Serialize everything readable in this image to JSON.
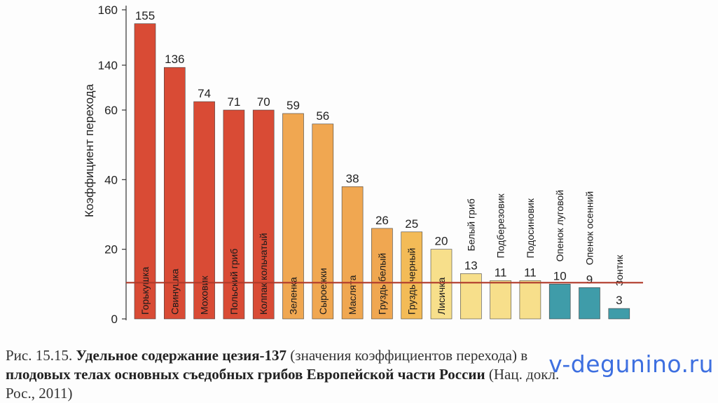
{
  "chart_data": {
    "type": "bar",
    "title": "",
    "ylabel": "Коэффициент перехода",
    "xlabel": "",
    "y_ticks": [
      "160",
      "140",
      "60",
      "40",
      "20",
      "0"
    ],
    "y_tick_values": [
      160,
      140,
      60,
      40,
      20,
      0
    ],
    "axis_break": "between 60 and 140",
    "reference_line": 10,
    "categories": [
      "Горькушка",
      "Свинушка",
      "Моховик",
      "Польский гриб",
      "Колпак кольчатый",
      "Зеленка",
      "Сыроежки",
      "Маслята",
      "Груздь белый",
      "Груздь черный",
      "Лисичка",
      "Белый гриб",
      "Подберезовик",
      "Подосиновик",
      "Опенок луговой",
      "Опенок осенний",
      "Зонтик"
    ],
    "values": [
      155,
      136,
      74,
      71,
      70,
      59,
      56,
      38,
      26,
      25,
      20,
      13,
      11,
      11,
      10,
      9,
      3
    ],
    "value_labels": [
      "155",
      "136",
      "74",
      "71",
      "70",
      "59",
      "56",
      "38",
      "26",
      "25",
      "20",
      "13",
      "11",
      "11",
      "10",
      "9",
      "3"
    ],
    "colors": [
      "#d94b35",
      "#d94b35",
      "#d94b35",
      "#d94b35",
      "#d94b35",
      "#f0a751",
      "#f0a751",
      "#f0a751",
      "#f0a751",
      "#f3bb57",
      "#f7df8b",
      "#f7df8b",
      "#f7df8b",
      "#f7df8b",
      "#3f9ca9",
      "#3f9ca9",
      "#3f9ca9"
    ],
    "label_inside_bar": [
      true,
      true,
      true,
      true,
      true,
      true,
      true,
      true,
      true,
      true,
      true,
      false,
      false,
      false,
      false,
      false,
      false
    ],
    "grid": false
  },
  "caption": {
    "prefix": "Рис. 15.15. ",
    "bold": "Удельное содержание цезия-137",
    "rest": " (значения коэффициентов перехода) в",
    "line2_bold": "плодовых телах основных съедобных грибов Европейской части России",
    "line2_rest": " (Нац. докл.",
    "line3": "Рос., 2011)"
  },
  "watermark": "v-degunino.ru"
}
